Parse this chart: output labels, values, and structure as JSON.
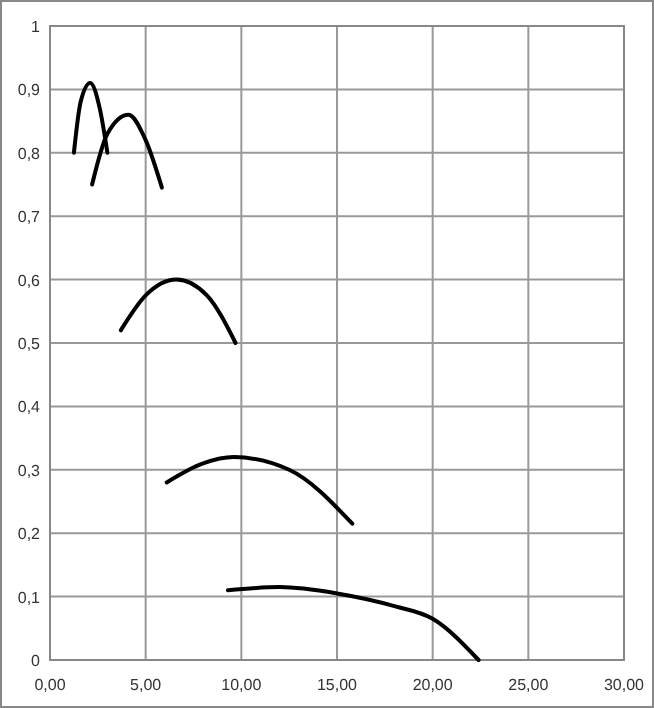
{
  "chart_data": {
    "type": "line",
    "marker": "none",
    "grid": true,
    "xlim": [
      0,
      30
    ],
    "ylim": [
      0,
      1
    ],
    "xticks": [
      {
        "value": 0,
        "label": "0,00"
      },
      {
        "value": 5,
        "label": "5,00"
      },
      {
        "value": 10,
        "label": "10,00"
      },
      {
        "value": 15,
        "label": "15,00"
      },
      {
        "value": 20,
        "label": "20,00"
      },
      {
        "value": 25,
        "label": "25,00"
      },
      {
        "value": 30,
        "label": "30,00"
      }
    ],
    "yticks": [
      0,
      {
        "value": 0.1,
        "label": "0,1"
      },
      {
        "value": 0.2,
        "label": "0,2"
      },
      {
        "value": 0.3,
        "label": "0,3"
      },
      {
        "value": 0.4,
        "label": "0,4"
      },
      {
        "value": 0.5,
        "label": "0,5"
      },
      {
        "value": 0.6,
        "label": "0,6"
      },
      {
        "value": 0.7,
        "label": "0,7"
      },
      {
        "value": 0.8,
        "label": "0,8"
      },
      {
        "value": 0.9,
        "label": "0,9"
      },
      1
    ],
    "series": [
      {
        "color": "#000000",
        "x": [
          1.25,
          1.6,
          2.1,
          2.6,
          3.0
        ],
        "values": [
          0.8,
          0.88,
          0.91,
          0.87,
          0.8
        ]
      },
      {
        "color": "#000000",
        "x": [
          2.2,
          3.0,
          4.1,
          5.0,
          5.85
        ],
        "values": [
          0.75,
          0.83,
          0.86,
          0.82,
          0.745
        ]
      },
      {
        "color": "#000000",
        "x": [
          3.7,
          5.0,
          6.6,
          8.2,
          9.7
        ],
        "values": [
          0.52,
          0.575,
          0.6,
          0.575,
          0.5
        ]
      },
      {
        "color": "#000000",
        "x": [
          6.1,
          8.0,
          9.6,
          12.5,
          15.8
        ],
        "values": [
          0.28,
          0.31,
          0.32,
          0.3,
          0.215
        ]
      },
      {
        "color": "#000000",
        "x": [
          9.3,
          12.0,
          15.0,
          18.0,
          20.0,
          22.4
        ],
        "values": [
          0.11,
          0.115,
          0.105,
          0.085,
          0.065,
          0.0
        ]
      }
    ]
  }
}
